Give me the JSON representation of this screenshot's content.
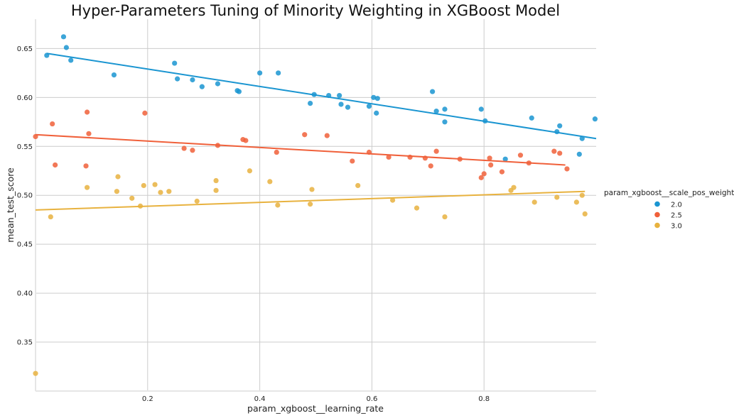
{
  "chart_data": {
    "type": "scatter",
    "title": "Hyper-Parameters Tuning of Minority Weighting in XGBoost Model",
    "xlabel": "param_xgboost__learning_rate",
    "ylabel": "mean_test_score",
    "xlim": [
      0.0,
      1.0
    ],
    "ylim": [
      0.3,
      0.68
    ],
    "xticks": [
      0.2,
      0.4,
      0.6,
      0.8
    ],
    "xtick_labels": [
      "0.2",
      "0.4",
      "0.6",
      "0.8"
    ],
    "yticks": [
      0.35,
      0.4,
      0.45,
      0.5,
      0.55,
      0.6,
      0.65
    ],
    "ytick_labels": [
      "0.35",
      "0.40",
      "0.45",
      "0.50",
      "0.55",
      "0.60",
      "0.65"
    ],
    "grid": true,
    "legend": {
      "title": "param_xgboost__scale_pos_weight",
      "placement": "right"
    },
    "series": [
      {
        "name": "2.0",
        "color": "#1a95d1",
        "points": [
          [
            0.02,
            0.643
          ],
          [
            0.05,
            0.662
          ],
          [
            0.055,
            0.651
          ],
          [
            0.063,
            0.638
          ],
          [
            0.14,
            0.623
          ],
          [
            0.248,
            0.635
          ],
          [
            0.253,
            0.619
          ],
          [
            0.28,
            0.618
          ],
          [
            0.297,
            0.611
          ],
          [
            0.325,
            0.614
          ],
          [
            0.36,
            0.607
          ],
          [
            0.363,
            0.606
          ],
          [
            0.4,
            0.625
          ],
          [
            0.433,
            0.625
          ],
          [
            0.49,
            0.594
          ],
          [
            0.497,
            0.603
          ],
          [
            0.523,
            0.602
          ],
          [
            0.542,
            0.602
          ],
          [
            0.545,
            0.593
          ],
          [
            0.557,
            0.59
          ],
          [
            0.595,
            0.591
          ],
          [
            0.603,
            0.6
          ],
          [
            0.61,
            0.599
          ],
          [
            0.608,
            0.584
          ],
          [
            0.708,
            0.606
          ],
          [
            0.715,
            0.586
          ],
          [
            0.73,
            0.588
          ],
          [
            0.73,
            0.575
          ],
          [
            0.795,
            0.588
          ],
          [
            0.802,
            0.576
          ],
          [
            0.838,
            0.537
          ],
          [
            0.885,
            0.579
          ],
          [
            0.93,
            0.565
          ],
          [
            0.935,
            0.571
          ],
          [
            0.97,
            0.542
          ],
          [
            0.975,
            0.558
          ],
          [
            0.998,
            0.578
          ]
        ],
        "fit": [
          [
            0.02,
            0.645
          ],
          [
            1.0,
            0.558
          ]
        ]
      },
      {
        "name": "2.5",
        "color": "#f0603a",
        "points": [
          [
            0.0,
            0.56
          ],
          [
            0.03,
            0.573
          ],
          [
            0.035,
            0.531
          ],
          [
            0.09,
            0.53
          ],
          [
            0.092,
            0.585
          ],
          [
            0.095,
            0.563
          ],
          [
            0.195,
            0.584
          ],
          [
            0.265,
            0.548
          ],
          [
            0.28,
            0.546
          ],
          [
            0.325,
            0.551
          ],
          [
            0.37,
            0.557
          ],
          [
            0.375,
            0.556
          ],
          [
            0.43,
            0.544
          ],
          [
            0.48,
            0.562
          ],
          [
            0.52,
            0.561
          ],
          [
            0.565,
            0.535
          ],
          [
            0.595,
            0.544
          ],
          [
            0.63,
            0.539
          ],
          [
            0.668,
            0.539
          ],
          [
            0.695,
            0.538
          ],
          [
            0.705,
            0.53
          ],
          [
            0.715,
            0.545
          ],
          [
            0.757,
            0.537
          ],
          [
            0.795,
            0.518
          ],
          [
            0.8,
            0.522
          ],
          [
            0.81,
            0.538
          ],
          [
            0.812,
            0.531
          ],
          [
            0.832,
            0.524
          ],
          [
            0.865,
            0.541
          ],
          [
            0.88,
            0.533
          ],
          [
            0.925,
            0.545
          ],
          [
            0.935,
            0.543
          ],
          [
            0.948,
            0.527
          ]
        ],
        "fit": [
          [
            0.0,
            0.562
          ],
          [
            0.945,
            0.531
          ]
        ]
      },
      {
        "name": "3.0",
        "color": "#e8b23f",
        "points": [
          [
            0.0,
            0.318
          ],
          [
            0.027,
            0.478
          ],
          [
            0.092,
            0.508
          ],
          [
            0.145,
            0.504
          ],
          [
            0.147,
            0.519
          ],
          [
            0.172,
            0.497
          ],
          [
            0.187,
            0.489
          ],
          [
            0.193,
            0.51
          ],
          [
            0.213,
            0.511
          ],
          [
            0.223,
            0.503
          ],
          [
            0.238,
            0.504
          ],
          [
            0.288,
            0.494
          ],
          [
            0.322,
            0.505
          ],
          [
            0.322,
            0.515
          ],
          [
            0.382,
            0.525
          ],
          [
            0.418,
            0.514
          ],
          [
            0.432,
            0.49
          ],
          [
            0.49,
            0.491
          ],
          [
            0.493,
            0.506
          ],
          [
            0.575,
            0.51
          ],
          [
            0.637,
            0.495
          ],
          [
            0.68,
            0.487
          ],
          [
            0.73,
            0.478
          ],
          [
            0.848,
            0.505
          ],
          [
            0.853,
            0.508
          ],
          [
            0.89,
            0.493
          ],
          [
            0.93,
            0.498
          ],
          [
            0.965,
            0.493
          ],
          [
            0.975,
            0.5
          ],
          [
            0.98,
            0.481
          ]
        ],
        "fit": [
          [
            0.0,
            0.485
          ],
          [
            0.98,
            0.504
          ]
        ]
      }
    ]
  }
}
